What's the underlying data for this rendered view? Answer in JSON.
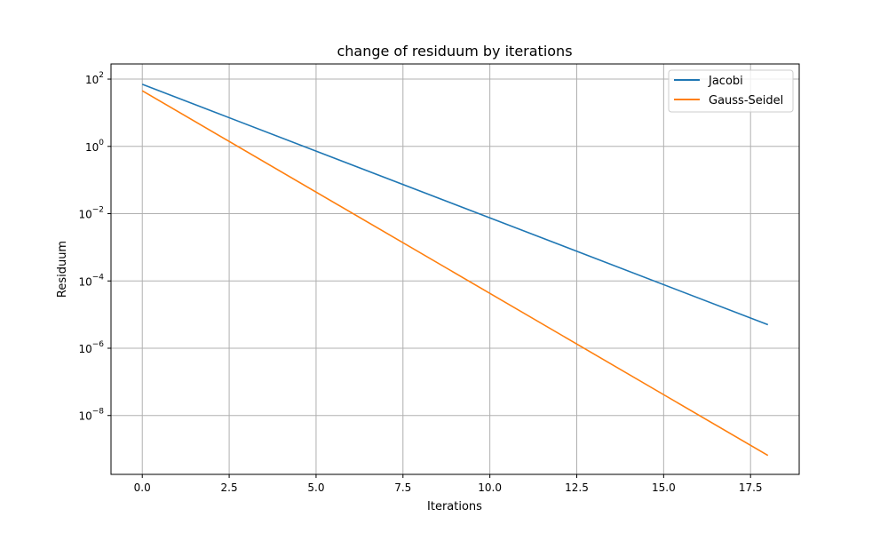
{
  "chart_data": {
    "type": "line",
    "title": "change of residuum by iterations",
    "xlabel": "Iterations",
    "ylabel": "Residuum",
    "xlim": [
      -0.9,
      18.9
    ],
    "ylim_log10": [
      -9.75,
      2.45
    ],
    "yscale": "log",
    "grid": true,
    "legend_position": "top-right",
    "x_ticks": [
      0.0,
      2.5,
      5.0,
      7.5,
      10.0,
      12.5,
      15.0,
      17.5
    ],
    "x_tick_labels": [
      "0.0",
      "2.5",
      "5.0",
      "7.5",
      "10.0",
      "12.5",
      "15.0",
      "17.5"
    ],
    "y_tick_exponents": [
      2,
      0,
      -2,
      -4,
      -6,
      -8
    ],
    "y_tick_labels": [
      {
        "base": "10",
        "exp": "2"
      },
      {
        "base": "10",
        "exp": "0"
      },
      {
        "base": "10",
        "exp": "−2"
      },
      {
        "base": "10",
        "exp": "−4"
      },
      {
        "base": "10",
        "exp": "−6"
      },
      {
        "base": "10",
        "exp": "−8"
      }
    ],
    "series": [
      {
        "name": "Jacobi",
        "color": "#1f77b4",
        "x": [
          0,
          18
        ],
        "y": [
          70.0,
          5e-06
        ]
      },
      {
        "name": "Gauss-Seidel",
        "color": "#ff7f0e",
        "x": [
          0,
          18
        ],
        "y": [
          45.0,
          6.5e-10
        ]
      }
    ]
  }
}
